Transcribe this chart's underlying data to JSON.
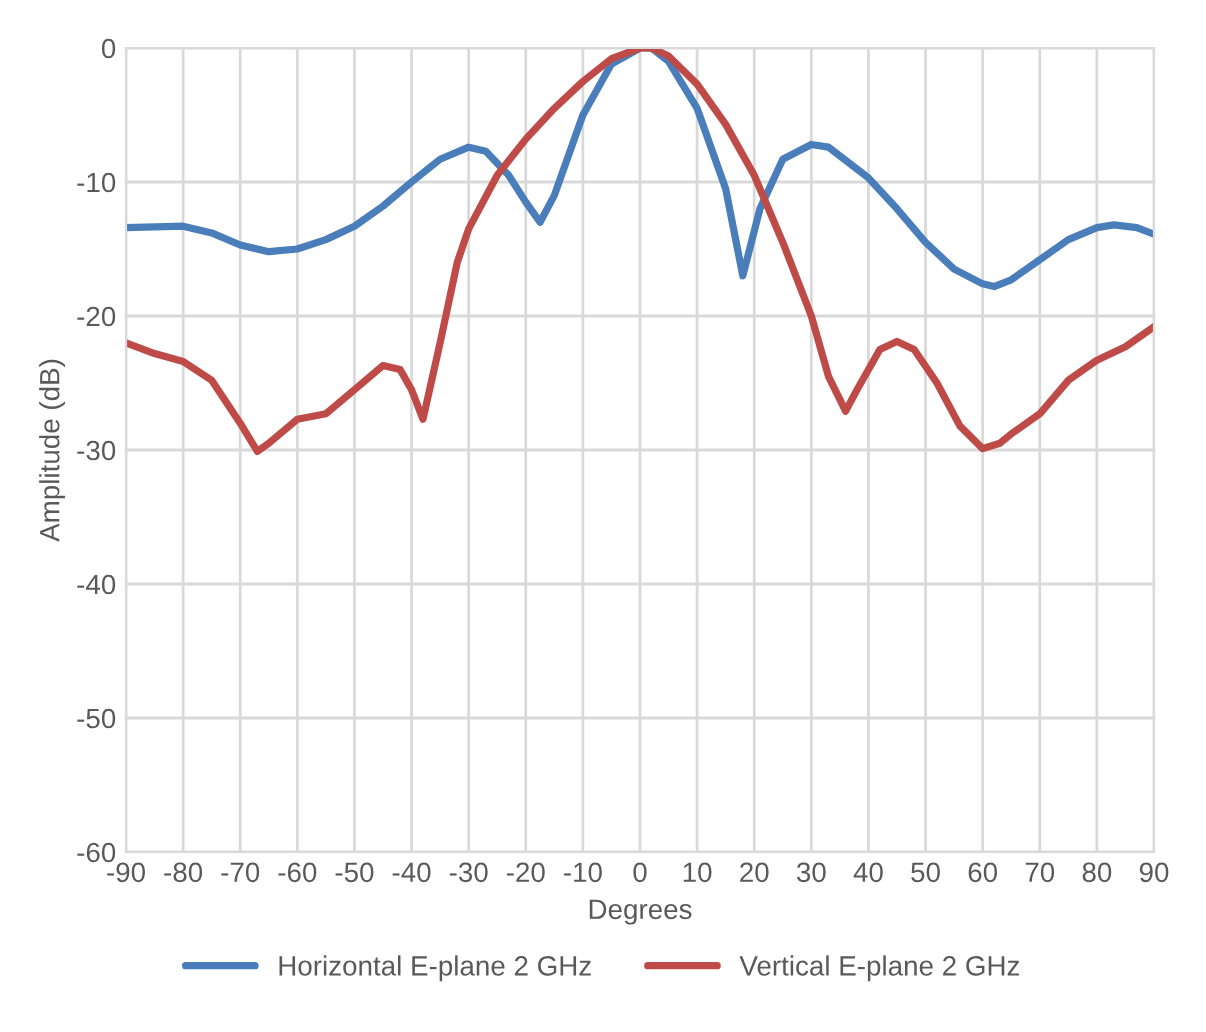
{
  "chart_data": {
    "type": "line",
    "xlabel": "Degrees",
    "ylabel": "Amplitude (dB)",
    "xlim": [
      -90,
      90
    ],
    "xticks": [
      -90,
      -80,
      -70,
      -60,
      -50,
      -40,
      -30,
      -20,
      -10,
      0,
      10,
      20,
      30,
      40,
      50,
      60,
      70,
      80,
      90
    ],
    "ylim": [
      -60,
      0
    ],
    "yticks": [
      -60,
      -50,
      -40,
      -30,
      -20,
      -10,
      0
    ],
    "grid": true,
    "legend": "bottom",
    "line_style": "solid",
    "marker": "none",
    "series": [
      {
        "name": "Horizontal E-plane 2 GHz",
        "color": "#4a7ebb",
        "x": [
          -90,
          -80,
          -75,
          -70,
          -65,
          -60,
          -55,
          -50,
          -45,
          -40,
          -35,
          -30,
          -27,
          -23,
          -20,
          -17.5,
          -15,
          -10,
          -5,
          0,
          2,
          5,
          10,
          15,
          18,
          21,
          25,
          30,
          33,
          40,
          45,
          50,
          55,
          60,
          62,
          65,
          70,
          75,
          80,
          83,
          87,
          90
        ],
        "values": [
          -13.4,
          -13.3,
          -13.8,
          -14.7,
          -15.2,
          -15.0,
          -14.3,
          -13.3,
          -11.8,
          -10.0,
          -8.3,
          -7.4,
          -7.7,
          -9.5,
          -11.5,
          -13.0,
          -11.0,
          -5.0,
          -1.2,
          0,
          0,
          -1.0,
          -4.5,
          -10.5,
          -17.0,
          -12.0,
          -8.3,
          -7.2,
          -7.4,
          -9.7,
          -12.0,
          -14.5,
          -16.5,
          -17.6,
          -17.8,
          -17.3,
          -15.8,
          -14.3,
          -13.4,
          -13.2,
          -13.4,
          -13.9
        ]
      },
      {
        "name": "Vertical E-plane 2 GHz",
        "color": "#be4b48",
        "x": [
          -90,
          -85,
          -80,
          -75,
          -70,
          -67,
          -65,
          -60,
          -55,
          -50,
          -45,
          -42,
          -40,
          -38,
          -35,
          -32,
          -30,
          -25,
          -20,
          -15,
          -10,
          -5,
          0,
          2,
          5,
          10,
          15,
          20,
          25,
          30,
          33,
          36,
          38,
          42,
          45,
          48,
          52,
          56,
          60,
          63,
          65,
          70,
          75,
          80,
          85,
          90
        ],
        "values": [
          -22,
          -22.8,
          -23.4,
          -24.8,
          -28,
          -30.1,
          -29.5,
          -27.7,
          -27.3,
          -25.5,
          -23.7,
          -24,
          -25.5,
          -27.7,
          -22,
          -16,
          -13.5,
          -9.5,
          -6.8,
          -4.5,
          -2.5,
          -0.8,
          0,
          0,
          -0.6,
          -2.7,
          -5.7,
          -9.5,
          -14.5,
          -20,
          -24.5,
          -27.1,
          -25.5,
          -22.5,
          -21.9,
          -22.5,
          -25,
          -28.2,
          -29.9,
          -29.5,
          -28.8,
          -27.3,
          -24.8,
          -23.3,
          -22.3,
          -20.8
        ]
      }
    ]
  }
}
